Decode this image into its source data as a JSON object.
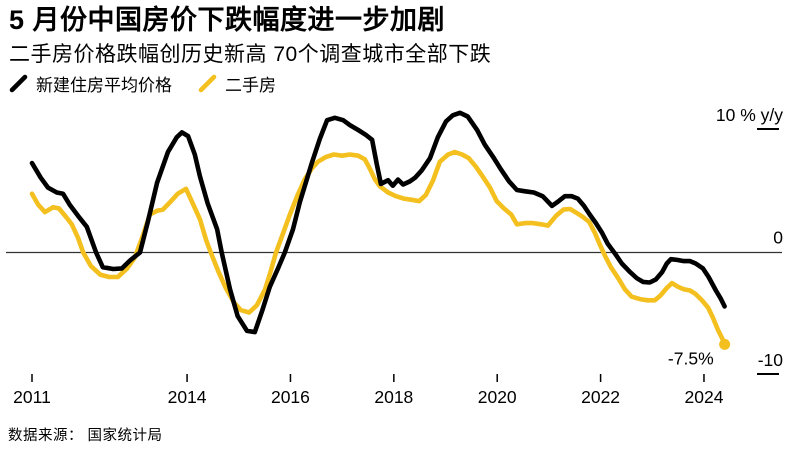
{
  "chart_data": {
    "type": "line",
    "title": "5 月份中国房价下跌幅度进一步加剧",
    "subtitle": "二手房价格跌幅创历史新高 70个调查城市全部下跌",
    "source": "数据来源： 国家统计局",
    "unit": "% y/y",
    "xlim": [
      2011,
      2024.45
    ],
    "ylim": [
      -10,
      12
    ],
    "grid": "zero-line-only",
    "legend_position": "top-left",
    "x_ticks": [
      2011,
      2014,
      2016,
      2018,
      2020,
      2022,
      2024
    ],
    "y_ticks": [
      {
        "value": 10,
        "label": "10 % y/y"
      },
      {
        "value": 0,
        "label": "0"
      },
      {
        "value": -10,
        "label": "-10"
      }
    ],
    "annotation": {
      "text": "-7.5%",
      "x": 2024.4,
      "y": -7.5
    },
    "series": [
      {
        "name": "新建住房平均价格",
        "color": "#000000",
        "points": [
          [
            2011.0,
            7.3
          ],
          [
            2011.17,
            6.1
          ],
          [
            2011.31,
            5.3
          ],
          [
            2011.48,
            4.9
          ],
          [
            2011.6,
            4.8
          ],
          [
            2011.73,
            3.9
          ],
          [
            2011.89,
            3.0
          ],
          [
            2012.06,
            2.1
          ],
          [
            2012.24,
            0.0
          ],
          [
            2012.37,
            -1.2
          ],
          [
            2012.57,
            -1.35
          ],
          [
            2012.74,
            -1.3
          ],
          [
            2012.91,
            -0.6
          ],
          [
            2013.09,
            0.0
          ],
          [
            2013.24,
            2.5
          ],
          [
            2013.42,
            5.7
          ],
          [
            2013.63,
            8.2
          ],
          [
            2013.8,
            9.4
          ],
          [
            2013.9,
            9.8
          ],
          [
            2014.02,
            9.5
          ],
          [
            2014.15,
            8.0
          ],
          [
            2014.25,
            6.2
          ],
          [
            2014.4,
            4.0
          ],
          [
            2014.58,
            1.9
          ],
          [
            2014.67,
            0.0
          ],
          [
            2014.83,
            -3.0
          ],
          [
            2014.98,
            -5.2
          ],
          [
            2015.16,
            -6.4
          ],
          [
            2015.31,
            -6.5
          ],
          [
            2015.45,
            -4.8
          ],
          [
            2015.6,
            -2.8
          ],
          [
            2015.76,
            -1.3
          ],
          [
            2015.89,
            0.0
          ],
          [
            2016.05,
            1.9
          ],
          [
            2016.18,
            4.1
          ],
          [
            2016.42,
            7.4
          ],
          [
            2016.57,
            9.3
          ],
          [
            2016.71,
            10.8
          ],
          [
            2016.86,
            11.0
          ],
          [
            2017.02,
            10.8
          ],
          [
            2017.15,
            10.4
          ],
          [
            2017.31,
            10.0
          ],
          [
            2017.46,
            9.6
          ],
          [
            2017.58,
            9.2
          ],
          [
            2017.67,
            7.2
          ],
          [
            2017.75,
            5.6
          ],
          [
            2017.89,
            5.9
          ],
          [
            2017.98,
            5.45
          ],
          [
            2018.08,
            5.95
          ],
          [
            2018.18,
            5.55
          ],
          [
            2018.31,
            5.8
          ],
          [
            2018.41,
            6.1
          ],
          [
            2018.54,
            6.7
          ],
          [
            2018.7,
            7.7
          ],
          [
            2018.85,
            9.4
          ],
          [
            2019.01,
            10.7
          ],
          [
            2019.14,
            11.2
          ],
          [
            2019.28,
            11.4
          ],
          [
            2019.43,
            11.1
          ],
          [
            2019.61,
            10.0
          ],
          [
            2019.76,
            8.8
          ],
          [
            2019.92,
            7.8
          ],
          [
            2020.07,
            6.8
          ],
          [
            2020.23,
            5.8
          ],
          [
            2020.38,
            5.1
          ],
          [
            2020.54,
            5.0
          ],
          [
            2020.71,
            4.9
          ],
          [
            2020.88,
            4.6
          ],
          [
            2021.06,
            3.8
          ],
          [
            2021.19,
            4.2
          ],
          [
            2021.31,
            4.6
          ],
          [
            2021.44,
            4.6
          ],
          [
            2021.56,
            4.4
          ],
          [
            2021.68,
            3.8
          ],
          [
            2021.79,
            3.1
          ],
          [
            2021.91,
            2.4
          ],
          [
            2022.03,
            1.6
          ],
          [
            2022.14,
            0.7
          ],
          [
            2022.28,
            -0.1
          ],
          [
            2022.41,
            -0.9
          ],
          [
            2022.57,
            -1.6
          ],
          [
            2022.7,
            -2.1
          ],
          [
            2022.82,
            -2.4
          ],
          [
            2022.95,
            -2.45
          ],
          [
            2023.07,
            -2.2
          ],
          [
            2023.19,
            -1.6
          ],
          [
            2023.28,
            -0.9
          ],
          [
            2023.36,
            -0.55
          ],
          [
            2023.48,
            -0.6
          ],
          [
            2023.61,
            -0.7
          ],
          [
            2023.73,
            -0.7
          ],
          [
            2023.84,
            -0.9
          ],
          [
            2023.98,
            -1.3
          ],
          [
            2024.09,
            -2.0
          ],
          [
            2024.23,
            -3.1
          ],
          [
            2024.33,
            -3.8
          ],
          [
            2024.4,
            -4.4
          ]
        ]
      },
      {
        "name": "二手房",
        "color": "#F3C01F",
        "end_dot": true,
        "points": [
          [
            2011.0,
            4.8
          ],
          [
            2011.12,
            3.9
          ],
          [
            2011.25,
            3.3
          ],
          [
            2011.41,
            3.7
          ],
          [
            2011.52,
            3.6
          ],
          [
            2011.66,
            2.9
          ],
          [
            2011.77,
            2.3
          ],
          [
            2011.89,
            1.2
          ],
          [
            2011.99,
            0.0
          ],
          [
            2012.14,
            -1.1
          ],
          [
            2012.32,
            -1.8
          ],
          [
            2012.49,
            -2.0
          ],
          [
            2012.66,
            -2.0
          ],
          [
            2012.84,
            -1.3
          ],
          [
            2012.99,
            -0.4
          ],
          [
            2013.13,
            1.2
          ],
          [
            2013.28,
            3.1
          ],
          [
            2013.42,
            3.4
          ],
          [
            2013.53,
            3.5
          ],
          [
            2013.67,
            4.1
          ],
          [
            2013.82,
            4.8
          ],
          [
            2013.98,
            5.2
          ],
          [
            2014.11,
            4.0
          ],
          [
            2014.25,
            2.7
          ],
          [
            2014.37,
            1.0
          ],
          [
            2014.46,
            0.0
          ],
          [
            2014.6,
            -1.5
          ],
          [
            2014.75,
            -2.9
          ],
          [
            2014.91,
            -4.1
          ],
          [
            2015.04,
            -4.7
          ],
          [
            2015.2,
            -4.9
          ],
          [
            2015.35,
            -4.3
          ],
          [
            2015.51,
            -3.0
          ],
          [
            2015.62,
            -1.5
          ],
          [
            2015.72,
            0.0
          ],
          [
            2015.86,
            1.6
          ],
          [
            2015.99,
            3.1
          ],
          [
            2016.14,
            4.7
          ],
          [
            2016.28,
            6.0
          ],
          [
            2016.42,
            6.9
          ],
          [
            2016.53,
            7.4
          ],
          [
            2016.69,
            7.8
          ],
          [
            2016.84,
            8.0
          ],
          [
            2017.0,
            7.9
          ],
          [
            2017.15,
            8.0
          ],
          [
            2017.31,
            7.9
          ],
          [
            2017.44,
            7.6
          ],
          [
            2017.54,
            6.8
          ],
          [
            2017.63,
            6.0
          ],
          [
            2017.73,
            5.4
          ],
          [
            2017.89,
            4.9
          ],
          [
            2018.04,
            4.6
          ],
          [
            2018.19,
            4.4
          ],
          [
            2018.35,
            4.3
          ],
          [
            2018.49,
            4.2
          ],
          [
            2018.62,
            4.7
          ],
          [
            2018.76,
            5.9
          ],
          [
            2018.89,
            7.4
          ],
          [
            2019.05,
            8.0
          ],
          [
            2019.18,
            8.2
          ],
          [
            2019.32,
            8.0
          ],
          [
            2019.45,
            7.7
          ],
          [
            2019.59,
            7.0
          ],
          [
            2019.72,
            6.2
          ],
          [
            2019.86,
            5.3
          ],
          [
            2019.99,
            4.2
          ],
          [
            2020.13,
            3.6
          ],
          [
            2020.27,
            3.1
          ],
          [
            2020.38,
            2.3
          ],
          [
            2020.54,
            2.4
          ],
          [
            2020.69,
            2.4
          ],
          [
            2020.85,
            2.3
          ],
          [
            2020.98,
            2.2
          ],
          [
            2021.14,
            3.0
          ],
          [
            2021.28,
            3.5
          ],
          [
            2021.41,
            3.55
          ],
          [
            2021.55,
            3.2
          ],
          [
            2021.66,
            2.9
          ],
          [
            2021.78,
            2.5
          ],
          [
            2021.89,
            1.6
          ],
          [
            2021.99,
            0.6
          ],
          [
            2022.09,
            -0.3
          ],
          [
            2022.2,
            -1.2
          ],
          [
            2022.34,
            -2.1
          ],
          [
            2022.47,
            -3.0
          ],
          [
            2022.6,
            -3.6
          ],
          [
            2022.76,
            -3.8
          ],
          [
            2022.91,
            -3.9
          ],
          [
            2023.05,
            -3.9
          ],
          [
            2023.16,
            -3.5
          ],
          [
            2023.28,
            -2.9
          ],
          [
            2023.38,
            -2.5
          ],
          [
            2023.5,
            -2.8
          ],
          [
            2023.61,
            -3.0
          ],
          [
            2023.73,
            -3.1
          ],
          [
            2023.84,
            -3.4
          ],
          [
            2023.96,
            -3.9
          ],
          [
            2024.08,
            -4.5
          ],
          [
            2024.17,
            -5.3
          ],
          [
            2024.27,
            -6.3
          ],
          [
            2024.35,
            -7.0
          ],
          [
            2024.4,
            -7.5
          ]
        ]
      }
    ],
    "colors": {
      "zero_line": "#333333",
      "text": "#000000",
      "background": "#ffffff"
    }
  }
}
